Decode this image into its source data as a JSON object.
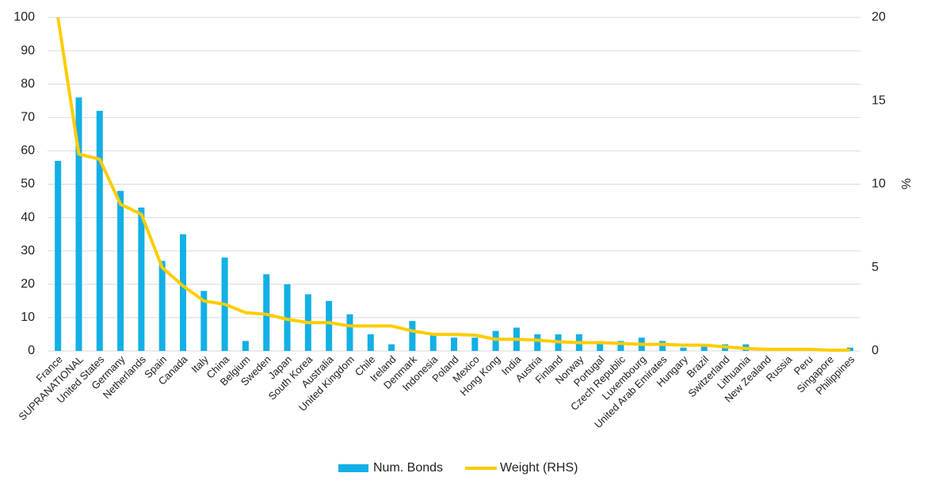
{
  "chart_data": {
    "type": "bar",
    "categories": [
      "France",
      "SUPRANATIONAL",
      "United States",
      "Germany",
      "Netherlands",
      "Spain",
      "Canada",
      "Italy",
      "China",
      "Belgium",
      "Sweden",
      "Japan",
      "South Korea",
      "Australia",
      "United Kingdom",
      "Chile",
      "Ireland",
      "Denmark",
      "Indonesia",
      "Poland",
      "Mexico",
      "Hong Kong",
      "India",
      "Austria",
      "Finland",
      "Norway",
      "Portugal",
      "Czech Republic",
      "Luxembourg",
      "United Arab Emirates",
      "Hungary",
      "Brazil",
      "Switzerland",
      "Lithuania",
      "New Zealand",
      "Russia",
      "Peru",
      "Singapore",
      "Philippines"
    ],
    "series": [
      {
        "name": "Num. Bonds",
        "type": "bar",
        "color": "#12b0e6",
        "values": [
          57,
          76,
          72,
          48,
          43,
          27,
          35,
          18,
          28,
          3,
          23,
          20,
          17,
          15,
          11,
          5,
          2,
          9,
          5,
          4,
          4,
          6,
          7,
          5,
          5,
          5,
          3,
          3,
          4,
          3,
          1,
          2,
          2,
          2,
          0,
          0,
          0,
          0,
          1
        ]
      },
      {
        "name": "Weight (RHS)",
        "type": "line",
        "axis": "y2",
        "color": "#ffcc00",
        "values": [
          20,
          11.8,
          11.5,
          8.8,
          8.2,
          5,
          3.9,
          3,
          2.8,
          2.3,
          2.2,
          1.9,
          1.7,
          1.7,
          1.5,
          1.5,
          1.5,
          1.2,
          1,
          1,
          0.95,
          0.7,
          0.7,
          0.65,
          0.55,
          0.5,
          0.5,
          0.45,
          0.4,
          0.4,
          0.35,
          0.35,
          0.25,
          0.15,
          0.1,
          0.1,
          0.1,
          0.05,
          0.05
        ]
      }
    ],
    "ylim": [
      0,
      100
    ],
    "yticks": [
      0,
      10,
      20,
      30,
      40,
      50,
      60,
      70,
      80,
      90,
      100
    ],
    "y2lim": [
      0,
      20
    ],
    "y2ticks": [
      0,
      5,
      10,
      15,
      20
    ],
    "y2label": "%",
    "grid": true,
    "legend": "bottom"
  }
}
